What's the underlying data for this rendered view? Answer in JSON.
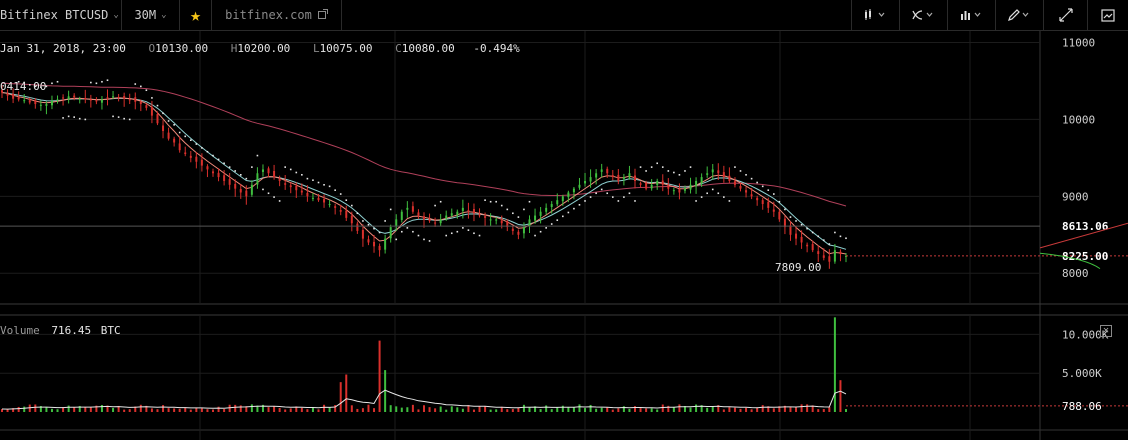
{
  "toolbar": {
    "symbol": "Bitfinex BTCUSD",
    "interval": "30M",
    "favorite_icon": "star-icon",
    "source_link": "bitfinex.com",
    "source_link_icon": "external-link-icon",
    "bar_type_icon": "candles-icon",
    "indicators_icon": "indicators-icon",
    "compare_icon": "compare-icon",
    "drawing_icon": "pencil-icon",
    "fullscreen_icon": "fullscreen-icon",
    "snapshot_icon": "camera-icon"
  },
  "legend": {
    "date": "Jan 31, 2018, 23:00",
    "open_label": "O",
    "open": "10130.00",
    "high_label": "H",
    "high": "10200.00",
    "low_label": "L",
    "low": "10075.00",
    "close_label": "C",
    "close": "10080.00",
    "change": "-0.494%"
  },
  "price_annotations": {
    "high_marker": "0414.00",
    "low_marker": "7809.00",
    "last_price": "8225.00",
    "cursor_price": "8613.06"
  },
  "price_axis_labels": [
    "11000",
    "10000",
    "9000",
    "8000"
  ],
  "volume": {
    "label": "Volume",
    "value": "716.45",
    "unit": "BTC",
    "axis_labels": [
      "10.000K",
      "5.000K"
    ],
    "last_volume": "788.06",
    "close_icon": "close-icon"
  },
  "colors": {
    "up": "#3fbf3f",
    "down": "#d9302c",
    "ema_fast": "#f08a7a",
    "ema_slow": "#8fd1d1",
    "sma_long": "#b0405a",
    "sar": "#e6e6e6",
    "volume_ma": "#e6e6e6"
  },
  "chart_data": {
    "type": "candlestick",
    "symbol": "BTCUSD",
    "interval": "30M",
    "ylim": [
      7600,
      11150
    ],
    "yticks": [
      8000,
      9000,
      10000,
      11000
    ],
    "volume_ylim": [
      0,
      12500
    ],
    "volume_yticks": [
      5000,
      10000
    ],
    "last_price": 8225.0,
    "cursor_price": 8613.06,
    "series_close": [
      10350,
      10310,
      10270,
      10260,
      10250,
      10220,
      10200,
      10190,
      10200,
      10240,
      10260,
      10280,
      10300,
      10290,
      10270,
      10260,
      10250,
      10240,
      10260,
      10280,
      10300,
      10290,
      10270,
      10260,
      10230,
      10200,
      10150,
      10050,
      9950,
      9850,
      9750,
      9700,
      9600,
      9550,
      9500,
      9450,
      9400,
      9350,
      9300,
      9250,
      9200,
      9150,
      9100,
      9050,
      9000,
      9150,
      9300,
      9350,
      9300,
      9250,
      9200,
      9150,
      9120,
      9080,
      9050,
      9000,
      8980,
      8950,
      8920,
      8900,
      8850,
      8800,
      8720,
      8650,
      8550,
      8450,
      8400,
      8350,
      8300,
      8450,
      8600,
      8700,
      8800,
      8850,
      8800,
      8750,
      8700,
      8680,
      8650,
      8700,
      8750,
      8780,
      8800,
      8850,
      8820,
      8780,
      8750,
      8720,
      8700,
      8700,
      8650,
      8600,
      8550,
      8500,
      8600,
      8700,
      8750,
      8800,
      8850,
      8900,
      8950,
      9000,
      9050,
      9100,
      9150,
      9200,
      9250,
      9300,
      9350,
      9300,
      9250,
      9200,
      9250,
      9300,
      9200,
      9150,
      9100,
      9150,
      9200,
      9150,
      9100,
      9080,
      9050,
      9100,
      9150,
      9200,
      9250,
      9300,
      9350,
      9300,
      9250,
      9200,
      9150,
      9100,
      9050,
      9000,
      8950,
      8900,
      8850,
      8800,
      8700,
      8600,
      8500,
      8450,
      8400,
      8350,
      8300,
      8250,
      8200,
      8150,
      8300,
      8250,
      8225
    ]
  }
}
